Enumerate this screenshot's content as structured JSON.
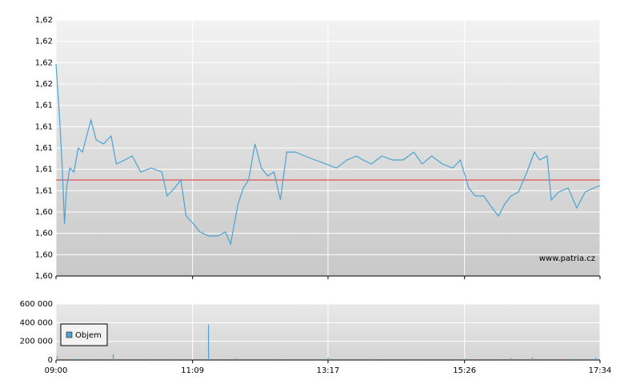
{
  "chart_data": [
    {
      "type": "line",
      "x": [
        "09:00",
        "09:03",
        "09:06",
        "09:08",
        "09:10",
        "09:13",
        "09:17",
        "09:21",
        "09:25",
        "09:30",
        "09:33",
        "09:38",
        "09:45",
        "09:52",
        "09:57",
        "10:05",
        "10:12",
        "10:20",
        "10:30",
        "10:40",
        "10:45",
        "10:52",
        "10:58",
        "11:03",
        "11:10",
        "11:16",
        "11:24",
        "11:33",
        "11:40",
        "11:45",
        "11:52",
        "11:57",
        "12:02",
        "12:08",
        "12:14",
        "12:20",
        "12:26",
        "12:32",
        "12:38",
        "12:46",
        "12:55",
        "13:05",
        "13:15",
        "13:25",
        "13:35",
        "13:44",
        "13:50",
        "13:58",
        "14:08",
        "14:18",
        "14:28",
        "14:38",
        "14:46",
        "14:55",
        "15:05",
        "15:15",
        "15:22",
        "15:30",
        "15:36",
        "15:44",
        "15:52",
        "15:58",
        "16:04",
        "16:10",
        "16:17",
        "16:25",
        "16:32",
        "16:37",
        "16:44",
        "16:48",
        "16:55",
        "17:04",
        "17:12",
        "17:20",
        "17:28",
        "17:34"
      ],
      "series": [
        {
          "name": "Cena",
          "color": "#4aa3d0",
          "values": [
            1.61688,
            1.61261,
            1.60762,
            1.60263,
            1.60584,
            1.60762,
            1.60726,
            1.6094,
            1.60904,
            1.61083,
            1.61189,
            1.61011,
            1.60976,
            1.61047,
            1.60798,
            1.60833,
            1.60869,
            1.60726,
            1.60762,
            1.60726,
            1.60513,
            1.60584,
            1.60655,
            1.60334,
            1.60263,
            1.60192,
            1.60156,
            1.60156,
            1.60192,
            1.60085,
            1.60441,
            1.60584,
            1.60655,
            1.60976,
            1.60762,
            1.60691,
            1.60726,
            1.60477,
            1.60904,
            1.60904,
            1.60869,
            1.60833,
            1.60798,
            1.60762,
            1.60833,
            1.60869,
            1.60833,
            1.60798,
            1.60869,
            1.60833,
            1.60833,
            1.60904,
            1.60798,
            1.60869,
            1.60798,
            1.60762,
            1.60833,
            1.60584,
            1.60513,
            1.60513,
            1.60406,
            1.60334,
            1.60441,
            1.60513,
            1.60548,
            1.60726,
            1.60904,
            1.60833,
            1.60869,
            1.60477,
            1.60548,
            1.60584,
            1.60406,
            1.60548,
            1.60584,
            1.60605
          ]
        }
      ],
      "reference": 1.60655,
      "reference_color": "#e03030",
      "xlim": [
        "09:00",
        "17:34"
      ],
      "xticks": [
        "09:00",
        "11:09",
        "13:17",
        "15:26",
        "17:34"
      ],
      "ylim": [
        1.598,
        1.6208
      ],
      "yticks": [
        {
          "value": 1.598,
          "label": "1,60"
        },
        {
          "value": 1.5999,
          "label": "1,60"
        },
        {
          "value": 1.6018,
          "label": "1,60"
        },
        {
          "value": 1.6037,
          "label": "1,60"
        },
        {
          "value": 1.6056,
          "label": "1,61"
        },
        {
          "value": 1.6075,
          "label": "1,61"
        },
        {
          "value": 1.6094,
          "label": "1,61"
        },
        {
          "value": 1.6113,
          "label": "1,61"
        },
        {
          "value": 1.6132,
          "label": "1,61"
        },
        {
          "value": 1.6151,
          "label": "1,62"
        },
        {
          "value": 1.617,
          "label": "1,62"
        },
        {
          "value": 1.6189,
          "label": "1,62"
        },
        {
          "value": 1.6208,
          "label": "1,62"
        }
      ],
      "annotation": "www.patria.cz",
      "grid": true
    },
    {
      "type": "bar",
      "x": [
        "09:01",
        "09:20",
        "09:54",
        "10:30",
        "10:50",
        "11:24",
        "11:50",
        "12:30",
        "13:17",
        "14:00",
        "14:40",
        "15:26",
        "16:10",
        "16:30",
        "17:10",
        "17:30"
      ],
      "series": [
        {
          "name": "Objem",
          "color": "#4aa3d0",
          "values": [
            45000,
            15000,
            60000,
            15000,
            10000,
            380000,
            20000,
            15000,
            25000,
            10000,
            12000,
            15000,
            20000,
            30000,
            15000,
            25000
          ]
        }
      ],
      "xlim": [
        "09:00",
        "17:34"
      ],
      "xticks": [
        "09:00",
        "11:09",
        "13:17",
        "15:26",
        "17:34"
      ],
      "ylim": [
        0,
        600000
      ],
      "yticks": [
        0,
        {
          "value": 200000,
          "label": "200 000"
        },
        {
          "value": 400000,
          "label": "400 000"
        },
        {
          "value": 600000,
          "label": "600 000"
        }
      ],
      "grid": true,
      "legend": "upper left"
    }
  ]
}
